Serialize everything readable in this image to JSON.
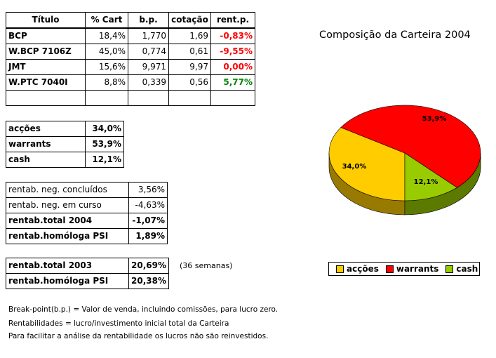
{
  "portfolio_table": {
    "headers": [
      "Título",
      "% Cart",
      "b.p.",
      "cotação",
      "rent.p."
    ],
    "rows": [
      {
        "name": "BCP",
        "pct": "18,4%",
        "bp": "1,770",
        "cot": "1,69",
        "rent": "-0,83%",
        "rent_class": "neg"
      },
      {
        "name": "W.BCP 7106Z",
        "pct": "45,0%",
        "bp": "0,774",
        "cot": "0,61",
        "rent": "-9,55%",
        "rent_class": "neg"
      },
      {
        "name": "JMT",
        "pct": "15,6%",
        "bp": "9,971",
        "cot": "9,97",
        "rent": "0,00%",
        "rent_class": "zero"
      },
      {
        "name": "W.PTC 7040I",
        "pct": "8,8%",
        "bp": "0,339",
        "cot": "0,56",
        "rent": "5,77%",
        "rent_class": "pos"
      }
    ]
  },
  "allocation": [
    {
      "label": "acções",
      "value": "34,0%"
    },
    {
      "label": "warrants",
      "value": "53,9%"
    },
    {
      "label": "cash",
      "value": "12,1%"
    }
  ],
  "returns_2004": [
    {
      "label": "rentab. neg. concluídos",
      "value": "3,56%",
      "bold": false
    },
    {
      "label": "rentab. neg. em curso",
      "value": "-4,63%",
      "bold": false
    },
    {
      "label": "rentab.total 2004",
      "value": "-1,07%",
      "bold": true
    },
    {
      "label": "rentab.homóloga PSI",
      "value": "1,89%",
      "bold": true
    }
  ],
  "returns_2003": [
    {
      "label": "rentab.total 2003",
      "value": "20,69%"
    },
    {
      "label": "rentab.homóloga PSI",
      "value": "20,38%"
    }
  ],
  "weeks_note": "(36 semanas)",
  "footnotes": [
    "Break-point(b.p.) = Valor de venda, incluindo comissões, para lucro zero.",
    "Rentabilidades = lucro/investimento inicial total da Carteira",
    "Para facilitar a análise da rentabilidade os lucros não são reinvestidos."
  ],
  "chart_data": {
    "type": "pie",
    "title": "Composição da Carteira 2004",
    "categories": [
      "acções",
      "warrants",
      "cash"
    ],
    "values": [
      34.0,
      53.9,
      12.1
    ],
    "data_labels": [
      "34,0%",
      "53,9%",
      "12,1%"
    ],
    "colors": [
      "#ffcc00",
      "#ff0000",
      "#99cc00"
    ],
    "side_colors": [
      "#997a00",
      "#990000",
      "#5c7a00"
    ],
    "three_d": true,
    "legend_position": "bottom"
  }
}
